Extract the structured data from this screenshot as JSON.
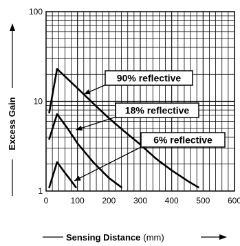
{
  "chart_data": {
    "type": "line",
    "xlabel": "Sensing Distance",
    "xlabel_unit": "(mm)",
    "ylabel": "Excess Gain",
    "xlim": [
      0,
      600
    ],
    "ylim": [
      1,
      100
    ],
    "y_scale": "log",
    "grid": true,
    "x_ticks": [
      "0",
      "100",
      "200",
      "300",
      "400",
      "500",
      "600"
    ],
    "y_ticks": [
      "1",
      "10",
      "100"
    ],
    "series": [
      {
        "name": "90% reflective",
        "x": [
          10,
          35,
          100,
          150,
          200,
          250,
          300,
          350,
          400,
          450,
          485
        ],
        "y": [
          7.5,
          23,
          14,
          9.5,
          6.5,
          4.6,
          3.3,
          2.3,
          1.7,
          1.3,
          1.1
        ]
      },
      {
        "name": "18% reflective",
        "x": [
          10,
          35,
          70,
          100,
          150,
          200,
          240
        ],
        "y": [
          3.8,
          7.2,
          4.9,
          3.4,
          2.1,
          1.4,
          1.1
        ]
      },
      {
        "name": "6% reflective",
        "x": [
          10,
          35,
          60,
          80,
          95
        ],
        "y": [
          1.1,
          2.1,
          1.6,
          1.3,
          1.1
        ]
      }
    ]
  }
}
